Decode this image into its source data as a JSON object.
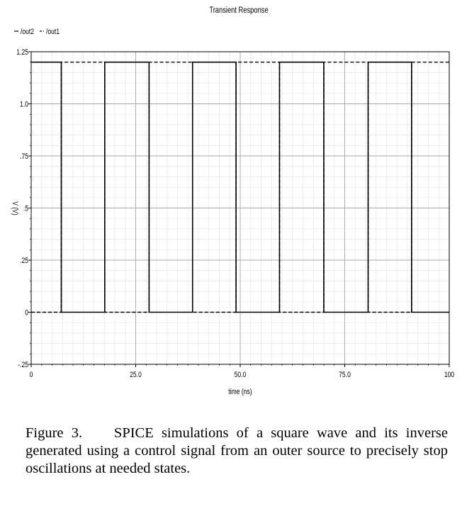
{
  "chart_data": {
    "type": "line",
    "title": "Transient Response",
    "xlabel": "time (ns)",
    "ylabel": "V (V)",
    "xlim": [
      0,
      100
    ],
    "ylim": [
      -0.25,
      1.25
    ],
    "x_ticks": [
      "0",
      "25.0",
      "50.0",
      "75.0",
      "100"
    ],
    "x_tick_values": [
      0,
      25,
      50,
      75,
      100
    ],
    "y_ticks": [
      "1.25",
      "1.0",
      ".75",
      ".5",
      ".25",
      "0",
      "-.25"
    ],
    "y_tick_values": [
      1.25,
      1.0,
      0.75,
      0.5,
      0.25,
      0,
      -0.25
    ],
    "grid": true,
    "legend_position": "top-left",
    "series": [
      {
        "name": "/out2",
        "style": "solid",
        "color": "#000000",
        "x": [
          0,
          7.2,
          7.2,
          17.6,
          17.6,
          28.2,
          28.2,
          38.6,
          38.6,
          49.0,
          49.0,
          59.4,
          59.4,
          70.0,
          70.0,
          80.6,
          80.6,
          91.0,
          91.0,
          100
        ],
        "y": [
          1.2,
          1.2,
          0,
          0,
          1.2,
          1.2,
          0,
          0,
          1.2,
          1.2,
          0,
          0,
          1.2,
          1.2,
          0,
          0,
          1.2,
          1.2,
          0,
          0
        ]
      },
      {
        "name": "/out1",
        "style": "dashed",
        "color": "#000000",
        "x": [
          0,
          7.2,
          7.2,
          17.6,
          17.6,
          28.2,
          28.2,
          38.6,
          38.6,
          49.0,
          49.0,
          59.4,
          59.4,
          70.0,
          70.0,
          80.6,
          80.6,
          91.0,
          91.0,
          100
        ],
        "y": [
          0,
          0,
          1.2,
          1.2,
          0,
          0,
          1.2,
          1.2,
          0,
          0,
          1.2,
          1.2,
          0,
          0,
          1.2,
          1.2,
          0,
          0,
          1.2,
          1.2
        ]
      }
    ]
  },
  "caption": {
    "label": "Figure 3.",
    "text": "SPICE simulations of a square wave and its inverse generated using a control signal from an outer source to precisely stop oscillations at needed states."
  }
}
